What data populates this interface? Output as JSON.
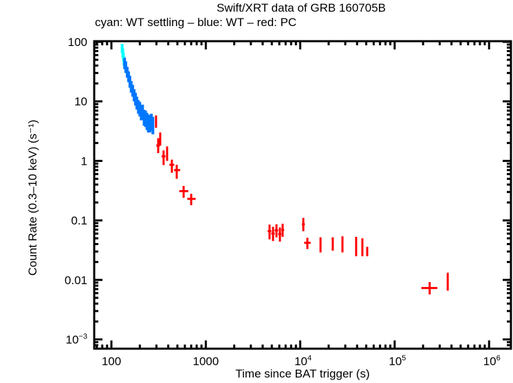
{
  "chart_data": {
    "type": "scatter",
    "title": "Swift/XRT data of GRB 160705B",
    "subtitle": "cyan: WT settling – blue: WT – red: PC",
    "xlabel": "Time since BAT trigger (s)",
    "ylabel": "Count Rate (0.3–10 keV) (s⁻¹)",
    "xscale": "log",
    "yscale": "log",
    "xlim": [
      63,
      2000000
    ],
    "ylim": [
      0.00078,
      100
    ],
    "grid": false,
    "xticks": [
      {
        "value": 100,
        "label": "100"
      },
      {
        "value": 1000,
        "label": "1000"
      },
      {
        "value": 10000,
        "label": "10",
        "sup": "4"
      },
      {
        "value": 100000,
        "label": "10",
        "sup": "5"
      },
      {
        "value": 1000000,
        "label": "10",
        "sup": "6"
      }
    ],
    "yticks": [
      {
        "value": 100,
        "label": "100"
      },
      {
        "value": 10,
        "label": "10"
      },
      {
        "value": 1,
        "label": "1"
      },
      {
        "value": 0.1,
        "label": "0.1"
      },
      {
        "value": 0.01,
        "label": "0.01"
      },
      {
        "value": 0.001,
        "label": "10",
        "sup": "−3"
      }
    ],
    "series": [
      {
        "name": "WT settling",
        "color": "#00ffff",
        "points": [
          {
            "t": 130,
            "tlo": 129,
            "thi": 131,
            "r": 78,
            "rlo": 65,
            "rhi": 92
          },
          {
            "t": 132,
            "tlo": 131,
            "thi": 133,
            "r": 66,
            "rlo": 55,
            "rhi": 78
          },
          {
            "t": 134,
            "tlo": 133,
            "thi": 135,
            "r": 56,
            "rlo": 47,
            "rhi": 66
          },
          {
            "t": 136,
            "tlo": 135,
            "thi": 137,
            "r": 48,
            "rlo": 40,
            "rhi": 57
          }
        ]
      },
      {
        "name": "WT",
        "color": "#0077ff",
        "points": [
          {
            "t": 138,
            "tlo": 137,
            "thi": 139,
            "r": 44,
            "rlo": 35,
            "rhi": 54
          },
          {
            "t": 142,
            "tlo": 140,
            "thi": 144,
            "r": 38,
            "rlo": 30,
            "rhi": 47
          },
          {
            "t": 147,
            "tlo": 145,
            "thi": 149,
            "r": 31,
            "rlo": 25,
            "rhi": 38
          },
          {
            "t": 152,
            "tlo": 150,
            "thi": 154,
            "r": 26,
            "rlo": 21,
            "rhi": 32
          },
          {
            "t": 157,
            "tlo": 155,
            "thi": 159,
            "r": 22,
            "rlo": 17,
            "rhi": 27
          },
          {
            "t": 162,
            "tlo": 160,
            "thi": 164,
            "r": 18,
            "rlo": 14,
            "rhi": 22
          },
          {
            "t": 168,
            "tlo": 166,
            "thi": 170,
            "r": 15,
            "rlo": 12,
            "rhi": 19
          },
          {
            "t": 174,
            "tlo": 172,
            "thi": 176,
            "r": 12.5,
            "rlo": 10,
            "rhi": 16
          },
          {
            "t": 180,
            "tlo": 178,
            "thi": 182,
            "r": 11,
            "rlo": 8.5,
            "rhi": 14
          },
          {
            "t": 186,
            "tlo": 184,
            "thi": 188,
            "r": 9.5,
            "rlo": 7.3,
            "rhi": 12
          },
          {
            "t": 193,
            "tlo": 191,
            "thi": 195,
            "r": 8,
            "rlo": 6.2,
            "rhi": 10.5
          },
          {
            "t": 200,
            "tlo": 198,
            "thi": 202,
            "r": 7.5,
            "rlo": 5.6,
            "rhi": 9.8
          },
          {
            "t": 207,
            "tlo": 205,
            "thi": 209,
            "r": 6.5,
            "rlo": 4.8,
            "rhi": 8.5
          },
          {
            "t": 214,
            "tlo": 212,
            "thi": 216,
            "r": 6.7,
            "rlo": 4.9,
            "rhi": 8.8
          },
          {
            "t": 222,
            "tlo": 220,
            "thi": 224,
            "r": 5.4,
            "rlo": 3.9,
            "rhi": 7.2
          },
          {
            "t": 230,
            "tlo": 228,
            "thi": 232,
            "r": 5.2,
            "rlo": 3.7,
            "rhi": 7
          },
          {
            "t": 238,
            "tlo": 236,
            "thi": 240,
            "r": 4.7,
            "rlo": 3.3,
            "rhi": 6.4
          },
          {
            "t": 246,
            "tlo": 244,
            "thi": 248,
            "r": 4.4,
            "rlo": 3.0,
            "rhi": 6
          },
          {
            "t": 255,
            "tlo": 252,
            "thi": 258,
            "r": 4.2,
            "rlo": 3.0,
            "rhi": 5.8
          },
          {
            "t": 265,
            "tlo": 262,
            "thi": 268,
            "r": 4.6,
            "rlo": 3.2,
            "rhi": 6.2
          },
          {
            "t": 275,
            "tlo": 272,
            "thi": 278,
            "r": 4.0,
            "rlo": 2.8,
            "rhi": 5.5
          }
        ]
      },
      {
        "name": "PC",
        "color": "#ff0000",
        "points": [
          {
            "t": 297,
            "tlo": 291,
            "thi": 303,
            "r": 4.6,
            "rlo": 3.6,
            "rhi": 5.8
          },
          {
            "t": 313,
            "tlo": 299,
            "thi": 326,
            "r": 1.81,
            "rlo": 1.35,
            "rhi": 2.4
          },
          {
            "t": 329,
            "tlo": 324,
            "thi": 334,
            "r": 2.36,
            "rlo": 1.8,
            "rhi": 3.0
          },
          {
            "t": 357,
            "tlo": 340,
            "thi": 374,
            "r": 1.19,
            "rlo": 0.85,
            "rhi": 1.5
          },
          {
            "t": 389,
            "tlo": 383,
            "thi": 395,
            "r": 1.39,
            "rlo": 1.0,
            "rhi": 1.75
          },
          {
            "t": 437,
            "tlo": 411,
            "thi": 463,
            "r": 0.86,
            "rlo": 0.63,
            "rhi": 1.05
          },
          {
            "t": 492,
            "tlo": 461,
            "thi": 535,
            "r": 0.7,
            "rlo": 0.5,
            "rhi": 0.86
          },
          {
            "t": 582,
            "tlo": 523,
            "thi": 652,
            "r": 0.31,
            "rlo": 0.24,
            "rhi": 0.38
          },
          {
            "t": 700,
            "tlo": 637,
            "thi": 780,
            "r": 0.23,
            "rlo": 0.18,
            "rhi": 0.28
          },
          {
            "t": 4730,
            "tlo": 4520,
            "thi": 4940,
            "r": 0.066,
            "rlo": 0.048,
            "rhi": 0.085
          },
          {
            "t": 5150,
            "tlo": 4940,
            "thi": 5360,
            "r": 0.06,
            "rlo": 0.045,
            "rhi": 0.078
          },
          {
            "t": 5600,
            "tlo": 5360,
            "thi": 5840,
            "r": 0.068,
            "rlo": 0.052,
            "rhi": 0.086
          },
          {
            "t": 6090,
            "tlo": 5840,
            "thi": 6300,
            "r": 0.059,
            "rlo": 0.044,
            "rhi": 0.076
          },
          {
            "t": 6510,
            "tlo": 6300,
            "thi": 6750,
            "r": 0.069,
            "rlo": 0.053,
            "rhi": 0.088
          },
          {
            "t": 10780,
            "tlo": 10400,
            "thi": 11200,
            "r": 0.086,
            "rlo": 0.066,
            "rhi": 0.11
          },
          {
            "t": 11900,
            "tlo": 11000,
            "thi": 12900,
            "r": 0.042,
            "rlo": 0.033,
            "rhi": 0.051
          },
          {
            "t": 16400,
            "tlo": 16100,
            "thi": 16700,
            "r": 0.041,
            "rlo": 0.029,
            "rhi": 0.052
          },
          {
            "t": 22100,
            "tlo": 21800,
            "thi": 22400,
            "r": 0.042,
            "rlo": 0.031,
            "rhi": 0.052
          },
          {
            "t": 28000,
            "tlo": 27600,
            "thi": 28400,
            "r": 0.042,
            "rlo": 0.029,
            "rhi": 0.054
          },
          {
            "t": 39100,
            "tlo": 38500,
            "thi": 39700,
            "r": 0.034,
            "rlo": 0.025,
            "rhi": 0.053
          },
          {
            "t": 45500,
            "tlo": 44800,
            "thi": 46200,
            "r": 0.033,
            "rlo": 0.025,
            "rhi": 0.05
          },
          {
            "t": 51200,
            "tlo": 50300,
            "thi": 52100,
            "r": 0.027,
            "rlo": 0.025,
            "rhi": 0.036
          },
          {
            "t": 235000,
            "tlo": 192000,
            "thi": 283000,
            "r": 0.0073,
            "rlo": 0.0057,
            "rhi": 0.0092
          },
          {
            "t": 365000,
            "tlo": 361000,
            "thi": 369000,
            "r": 0.0091,
            "rlo": 0.0066,
            "rhi": 0.0132
          }
        ]
      }
    ]
  }
}
